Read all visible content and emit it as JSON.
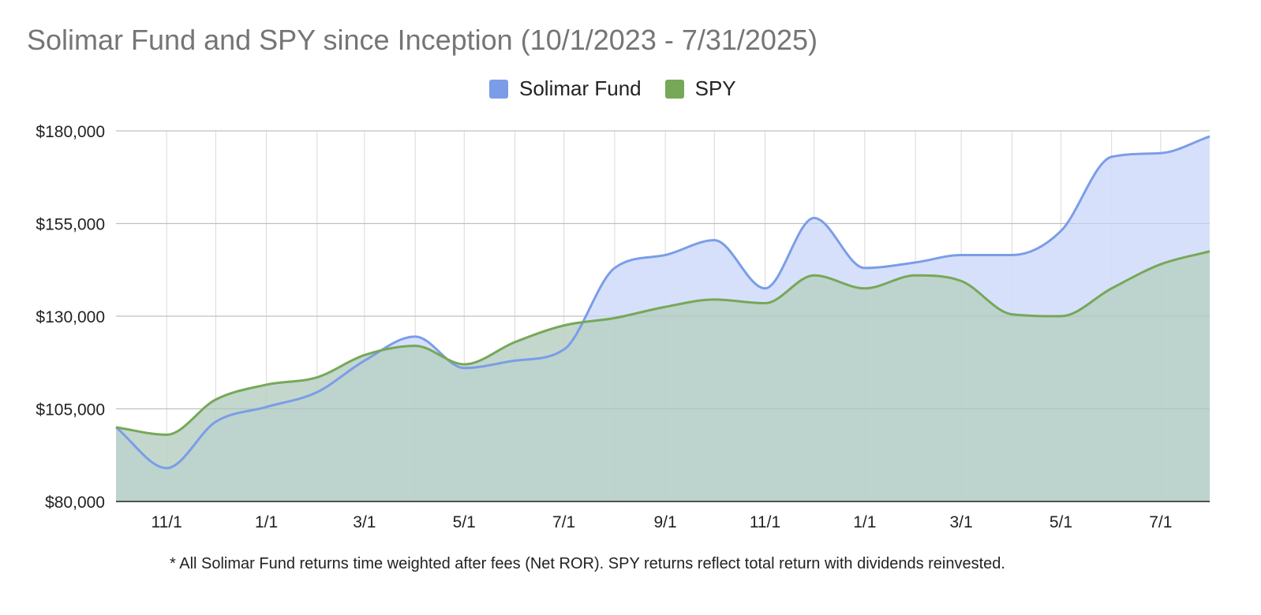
{
  "chart_data": {
    "type": "area",
    "title": "Solimar Fund and SPY since Inception (10/1/2023 - 7/31/2025)",
    "footnote": "* All Solimar Fund returns time weighted after fees (Net ROR). SPY returns reflect total return with dividends reinvested.",
    "xlabel": "",
    "ylabel": "",
    "x_tick_labels": [
      "11/1",
      "1/1",
      "3/1",
      "5/1",
      "7/1",
      "9/1",
      "11/1",
      "1/1",
      "3/1",
      "5/1",
      "7/1"
    ],
    "y_tick_labels": [
      "$80,000",
      "$105,000",
      "$130,000",
      "$155,000",
      "$180,000"
    ],
    "y_ticks": [
      80000,
      105000,
      130000,
      155000,
      180000
    ],
    "ylim": [
      80000,
      180000
    ],
    "x": [
      "2023-10-01",
      "2023-11-01",
      "2023-12-01",
      "2024-01-01",
      "2024-02-01",
      "2024-03-01",
      "2024-04-01",
      "2024-05-01",
      "2024-06-01",
      "2024-07-01",
      "2024-08-01",
      "2024-09-01",
      "2024-10-01",
      "2024-11-01",
      "2024-12-01",
      "2025-01-01",
      "2025-02-01",
      "2025-03-01",
      "2025-04-01",
      "2025-05-01",
      "2025-06-01",
      "2025-07-01",
      "2025-07-31"
    ],
    "series": [
      {
        "name": "Solimar Fund",
        "color": "#7b9de8",
        "fill": "#d4defa",
        "values": [
          100000,
          89000,
          101500,
          105500,
          109500,
          118000,
          124500,
          116000,
          118000,
          121000,
          143000,
          146500,
          150500,
          137500,
          156500,
          143000,
          144500,
          146500,
          146500,
          153000,
          173000,
          174000,
          178500
        ]
      },
      {
        "name": "SPY",
        "color": "#76a857",
        "fill": "#b8d0c4",
        "values": [
          100000,
          98000,
          107500,
          111500,
          113500,
          119500,
          122000,
          117000,
          123000,
          127500,
          129500,
          132500,
          134500,
          133500,
          141000,
          137500,
          141000,
          139500,
          130500,
          130000,
          137500,
          144000,
          147500
        ]
      }
    ],
    "grid": true,
    "legend_position": "top-center"
  }
}
